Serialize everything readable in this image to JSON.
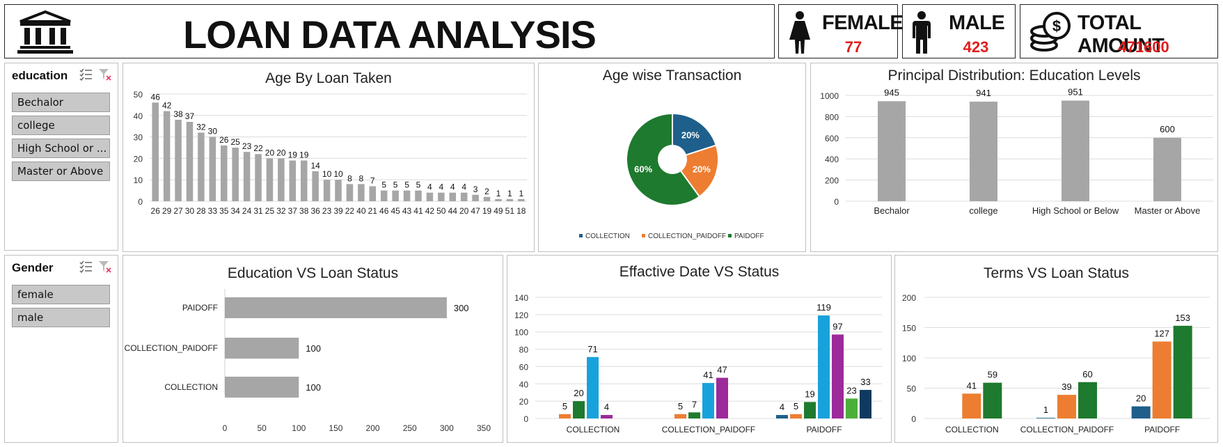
{
  "header": {
    "title": "LOAN DATA ANALYSIS",
    "bank_icon": "bank-building-icon"
  },
  "kpis": {
    "female": {
      "label": "FEMALE",
      "value": "77",
      "icon": "female-person-icon"
    },
    "male": {
      "label": "MALE",
      "value": "423",
      "icon": "male-person-icon"
    },
    "total": {
      "label": "TOTAL AMOUNT",
      "value": "471600",
      "icon": "coins-icon"
    }
  },
  "slicers": {
    "education": {
      "header": "education",
      "items": [
        "Bechalor",
        "college",
        "High School or ...",
        "Master or Above"
      ]
    },
    "gender": {
      "header": "Gender",
      "items": [
        "female",
        "male"
      ]
    }
  },
  "colors": {
    "bar_gray": "#a6a6a6",
    "kpi_red": "#e11d1d",
    "collection": "#1f5f8b",
    "collection_paidoff": "#ed7d31",
    "paidoff": "#1e7a2e",
    "cyan": "#18a2dc",
    "purple": "#9c2a9a",
    "light_green": "#4caf3a",
    "navy": "#0f3a5f"
  },
  "chart_data": [
    {
      "id": "age-loan",
      "type": "bar",
      "title": "Age By Loan Taken",
      "categories": [
        "26",
        "29",
        "27",
        "30",
        "28",
        "33",
        "35",
        "34",
        "24",
        "31",
        "25",
        "32",
        "37",
        "38",
        "36",
        "23",
        "39",
        "22",
        "40",
        "21",
        "46",
        "45",
        "43",
        "41",
        "42",
        "50",
        "44",
        "20",
        "47",
        "19",
        "49",
        "51",
        "18"
      ],
      "values": [
        46,
        42,
        38,
        37,
        32,
        30,
        26,
        25,
        23,
        22,
        20,
        20,
        19,
        19,
        14,
        10,
        10,
        8,
        8,
        7,
        5,
        5,
        5,
        5,
        4,
        4,
        4,
        4,
        3,
        2,
        1,
        1,
        1
      ],
      "ylim": [
        0,
        50
      ],
      "yticks": [
        0,
        10,
        20,
        30,
        40,
        50
      ],
      "grid": true
    },
    {
      "id": "age-pie",
      "type": "pie",
      "title": "Age wise Transaction",
      "labels": [
        "COLLECTION",
        "COLLECTION_PAIDOFF",
        "PAIDOFF"
      ],
      "values": [
        20,
        20,
        60
      ],
      "value_labels": [
        "20%",
        "20%",
        "60%"
      ],
      "legend": "bottom"
    },
    {
      "id": "principal",
      "type": "bar",
      "title": "Principal Distribution: Education Levels",
      "categories": [
        "Bechalor",
        "college",
        "High School or Below",
        "Master or Above"
      ],
      "values": [
        945,
        941,
        951,
        600
      ],
      "ylim": [
        0,
        1000
      ],
      "yticks": [
        0,
        200,
        400,
        600,
        800,
        1000
      ],
      "grid": true
    },
    {
      "id": "edu-status",
      "type": "bar",
      "orientation": "horizontal",
      "title": "Education VS Loan Status",
      "categories": [
        "PAIDOFF",
        "COLLECTION_PAIDOFF",
        "COLLECTION"
      ],
      "values": [
        300,
        100,
        100
      ],
      "xlim": [
        0,
        350
      ],
      "xticks": [
        0,
        50,
        100,
        150,
        200,
        250,
        300,
        350
      ]
    },
    {
      "id": "eff-date",
      "type": "bar",
      "title": "Effactive Date VS Status",
      "categories": [
        "COLLECTION",
        "COLLECTION_PAIDOFF",
        "PAIDOFF"
      ],
      "groups": [
        [
          null,
          5,
          20,
          71,
          4,
          null,
          null
        ],
        [
          null,
          5,
          7,
          41,
          47,
          null,
          null
        ],
        [
          4,
          5,
          19,
          119,
          97,
          23,
          33
        ]
      ],
      "ylim": [
        0,
        140
      ],
      "yticks": [
        0,
        20,
        40,
        60,
        80,
        100,
        120,
        140
      ],
      "grid": true
    },
    {
      "id": "terms",
      "type": "bar",
      "title": "Terms VS Loan Status",
      "categories": [
        "COLLECTION",
        "COLLECTION_PAIDOFF",
        "PAIDOFF"
      ],
      "groups": [
        [
          null,
          41,
          59
        ],
        [
          1,
          39,
          60
        ],
        [
          20,
          127,
          153
        ]
      ],
      "ylim": [
        0,
        200
      ],
      "yticks": [
        0,
        50,
        100,
        150,
        200
      ],
      "grid": true
    }
  ]
}
